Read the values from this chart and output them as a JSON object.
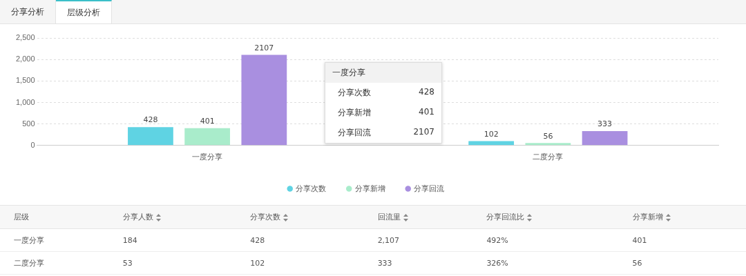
{
  "chart_data": [
    {
      "type": "other",
      "annotations": [
        "分享分析",
        "层级分析"
      ]
    },
    {
      "type": "bar",
      "categories": [
        "一度分享",
        "二度分享"
      ],
      "series": [
        {
          "name": "分享次数",
          "color": "#5fd3e3",
          "values": [
            428,
            102
          ]
        },
        {
          "name": "分享新增",
          "color": "#a9eccb",
          "values": [
            401,
            56
          ]
        },
        {
          "name": "分享回流",
          "color": "#a98fe0",
          "values": [
            2107,
            333
          ]
        }
      ],
      "ylim": [
        0,
        2500
      ],
      "yticks": [
        {
          "value": 0,
          "label": "0"
        },
        {
          "value": 500,
          "label": "500"
        },
        {
          "value": 1000,
          "label": "1,000"
        },
        {
          "value": 1500,
          "label": "1,500"
        },
        {
          "value": 2000,
          "label": "2,000"
        },
        {
          "value": 2500,
          "label": "2,500"
        }
      ],
      "grid": "y",
      "legend": "bottom",
      "data_labels": true,
      "annotations": [
        "一度分享",
        "分享次数",
        "428",
        "分享新增",
        "401",
        "分享回流",
        "2107"
      ]
    },
    {
      "type": "other",
      "annotations": [
        "层级",
        "分享人数",
        "分享次数",
        "回流里",
        "分享回流比",
        "分享新增",
        "一度分享",
        "184",
        "428",
        "2,107",
        "492%",
        "401",
        "二度分享",
        "53",
        "102",
        "333",
        "326%",
        "56"
      ]
    }
  ]
}
